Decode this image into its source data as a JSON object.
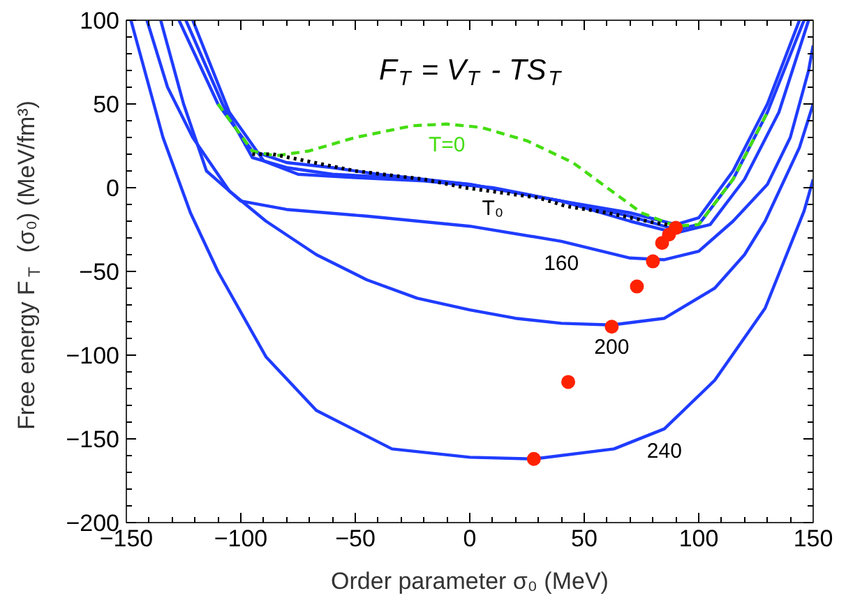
{
  "chart_data": {
    "type": "line",
    "xlabel": "Order parameter σ₀ (MeV)",
    "ylabel": "Free energy F$_{T}$ (σ₀) (MeV/fm³)",
    "xlim": [
      -150,
      150
    ],
    "ylim": [
      -200,
      100
    ],
    "xticks": [
      -150,
      -100,
      -50,
      0,
      50,
      100,
      150
    ],
    "yticks": [
      -200,
      -150,
      -100,
      -50,
      0,
      50,
      100
    ],
    "grid": false,
    "marker": "none",
    "series": [
      {
        "color": "#1f3cff",
        "line_style": "solid",
        "x": [
          -127,
          -110,
          -95,
          -80,
          -60,
          -40,
          0,
          40,
          70,
          90,
          100,
          115,
          130,
          144
        ],
        "values": [
          100,
          50,
          22,
          15,
          12,
          8,
          2,
          -8,
          -15,
          -22,
          -18,
          10,
          50,
          100
        ]
      },
      {
        "color": "#1f3cff",
        "line_style": "solid",
        "x": [
          -124,
          -108,
          -95,
          -80,
          -60,
          -30,
          0,
          40,
          70,
          90,
          100,
          115,
          130,
          146
        ],
        "values": [
          100,
          50,
          18,
          12,
          8,
          6,
          2,
          -8,
          -17,
          -25,
          -22,
          5,
          45,
          100
        ]
      },
      {
        "color": "#1f3cff",
        "line_style": "solid",
        "x": [
          -121,
          -105,
          -90,
          -75,
          -50,
          -20,
          10,
          40,
          70,
          90,
          105,
          120,
          135,
          148
        ],
        "values": [
          100,
          45,
          16,
          8,
          6,
          4,
          0,
          -8,
          -20,
          -27,
          -22,
          5,
          45,
          100
        ]
      },
      {
        "color": "#1f3cff",
        "line_style": "solid",
        "x": [
          -135,
          -125,
          -115,
          -100,
          -80,
          -45,
          0,
          40,
          70,
          85,
          100,
          115,
          130,
          140,
          148,
          150
        ],
        "values": [
          100,
          50,
          10,
          -8,
          -13,
          -17,
          -23,
          -32,
          -42,
          -43,
          -38,
          -20,
          2,
          30,
          70,
          85
        ]
      },
      {
        "color": "#1f3cff",
        "line_style": "solid",
        "x": [
          -141,
          -132,
          -121,
          -105,
          -89,
          -67,
          -45,
          -23,
          0,
          20,
          40,
          62,
          85,
          107,
          120,
          129,
          144,
          150
        ],
        "values": [
          100,
          60,
          30,
          -2,
          -20,
          -40,
          -55,
          -66,
          -73,
          -78,
          -81,
          -82,
          -78,
          -60,
          -40,
          -20,
          24,
          50
        ]
      },
      {
        "color": "#1f3cff",
        "line_style": "solid",
        "x": [
          -148,
          -140,
          -134,
          -122,
          -110,
          -89,
          -67,
          -34,
          0,
          28,
          63,
          85,
          107,
          129,
          146,
          150
        ],
        "values": [
          100,
          60,
          30,
          -15,
          -50,
          -101,
          -133,
          -156,
          -161,
          -162,
          -156,
          -144,
          -115,
          -72,
          -14,
          5
        ]
      },
      {
        "color": "#44dd11",
        "line_style": "dashed",
        "x": [
          -110,
          -95,
          -85,
          -70,
          -50,
          -25,
          -10,
          5,
          25,
          45,
          60,
          75,
          90,
          100,
          115,
          130
        ],
        "values": [
          50,
          22,
          19,
          22,
          30,
          37,
          38,
          36,
          28,
          15,
          0,
          -15,
          -23,
          -22,
          5,
          45
        ]
      },
      {
        "color": "#000000",
        "line_style": "dotted",
        "x": [
          -95,
          -86,
          -50,
          -20,
          -2,
          30,
          42,
          60,
          81,
          90
        ],
        "values": [
          20,
          20,
          10,
          5,
          0,
          -6,
          -11,
          -15,
          -21,
          -23
        ]
      },
      {
        "type": "scatter",
        "marker": "circle",
        "color": "#ff2200",
        "x": [
          90,
          87,
          84,
          80,
          73,
          62,
          43,
          28
        ],
        "values": [
          -24,
          -28,
          -33,
          -44,
          -59,
          -83,
          -116,
          -162
        ]
      }
    ],
    "annotations": [
      "F$_{T}$ = V$_{T}$ - TS$_{T}$",
      {
        "text": "T=0",
        "x": -10,
        "y": 38
      },
      {
        "text": "T₀",
        "x": 10,
        "y": 0
      },
      {
        "text": "160",
        "x": 40,
        "y": -32
      },
      {
        "text": "200",
        "x": 62,
        "y": -82
      },
      {
        "text": "240",
        "x": 85,
        "y": -144
      }
    ]
  }
}
